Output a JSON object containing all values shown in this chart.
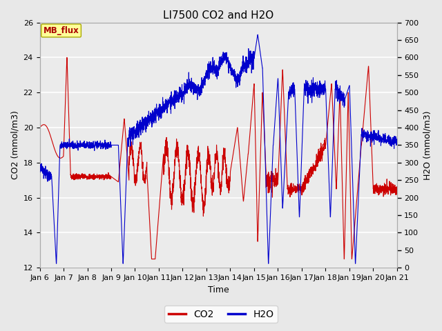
{
  "title": "LI7500 CO2 and H2O",
  "xlabel": "Time",
  "ylabel_left": "CO2 (mmol/m3)",
  "ylabel_right": "H2O (mmol/m3)",
  "co2_ylim": [
    12,
    26
  ],
  "h2o_ylim": [
    0,
    700
  ],
  "co2_color": "#cc0000",
  "h2o_color": "#0000cc",
  "fig_facecolor": "#e8e8e8",
  "plot_facecolor": "#ebebeb",
  "mb_flux_label": "MB_flux",
  "mb_flux_bg": "#ffff99",
  "mb_flux_border": "#aaaa00",
  "mb_flux_text_color": "#aa0000",
  "legend_co2": "CO2",
  "legend_h2o": "H2O",
  "x_tick_labels": [
    "Jan 6",
    "Jan 7",
    "Jan 8",
    "Jan 9",
    "Jan 10",
    "Jan 11",
    "Jan 12",
    "Jan 13",
    "Jan 14",
    "Jan 15",
    "Jan 16",
    "Jan 17",
    "Jan 18",
    "Jan 19",
    "Jan 20",
    "Jan 21"
  ],
  "left_yticks": [
    12,
    14,
    16,
    18,
    20,
    22,
    24,
    26
  ],
  "right_yticks": [
    0,
    50,
    100,
    150,
    200,
    250,
    300,
    350,
    400,
    450,
    500,
    550,
    600,
    650,
    700
  ],
  "title_fontsize": 11,
  "axis_fontsize": 9,
  "tick_fontsize": 8
}
